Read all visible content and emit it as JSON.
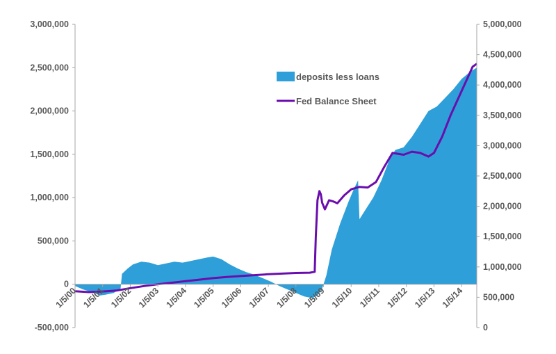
{
  "chart_data": {
    "type": "area",
    "title": "",
    "legend_position": "upper-middle",
    "grid": false,
    "x_ticks": [
      "1/5/00",
      "1/5/01",
      "1/5/02",
      "1/5/03",
      "1/5/04",
      "1/5/05",
      "1/5/06",
      "1/5/07",
      "1/5/08",
      "1/5/09",
      "1/5/10",
      "1/5/11",
      "1/5/12",
      "1/5/13",
      "1/5/14"
    ],
    "xlim": [
      2000.0,
      2014.55
    ],
    "y_left": {
      "ylim": [
        -500000,
        3000000
      ],
      "ticks": [
        "-500,000",
        "0",
        "500,000",
        "1,000,000",
        "1,500,000",
        "2,000,000",
        "2,500,000",
        "3,000,000"
      ],
      "tick_values": [
        -500000,
        0,
        500000,
        1000000,
        1500000,
        2000000,
        2500000,
        3000000
      ]
    },
    "y_right": {
      "ylim": [
        0,
        5000000
      ],
      "ticks": [
        "0",
        "500,000",
        "1,000,000",
        "1,500,000",
        "2,000,000",
        "2,500,000",
        "3,000,000",
        "3,500,000",
        "4,000,000",
        "4,500,000",
        "5,000,000"
      ],
      "tick_values": [
        0,
        500000,
        1000000,
        1500000,
        2000000,
        2500000,
        3000000,
        3500000,
        4000000,
        4500000,
        5000000
      ]
    },
    "series": [
      {
        "name": "deposits less loans",
        "type": "area",
        "axis": "left",
        "color": "#2e9fd8",
        "points": [
          [
            2000.0,
            -20000
          ],
          [
            2000.3,
            -60000
          ],
          [
            2000.6,
            -90000
          ],
          [
            2000.9,
            -130000
          ],
          [
            2001.1,
            -120000
          ],
          [
            2001.4,
            -100000
          ],
          [
            2001.65,
            -50000
          ],
          [
            2001.7,
            120000
          ],
          [
            2001.9,
            180000
          ],
          [
            2002.1,
            230000
          ],
          [
            2002.4,
            260000
          ],
          [
            2002.7,
            250000
          ],
          [
            2003.0,
            220000
          ],
          [
            2003.3,
            240000
          ],
          [
            2003.6,
            260000
          ],
          [
            2003.9,
            250000
          ],
          [
            2004.2,
            270000
          ],
          [
            2004.5,
            290000
          ],
          [
            2004.8,
            310000
          ],
          [
            2005.0,
            320000
          ],
          [
            2005.3,
            290000
          ],
          [
            2005.6,
            230000
          ],
          [
            2005.9,
            180000
          ],
          [
            2006.2,
            140000
          ],
          [
            2006.5,
            110000
          ],
          [
            2006.8,
            70000
          ],
          [
            2007.1,
            30000
          ],
          [
            2007.4,
            -20000
          ],
          [
            2007.7,
            -60000
          ],
          [
            2008.0,
            -100000
          ],
          [
            2008.3,
            -140000
          ],
          [
            2008.6,
            -160000
          ],
          [
            2008.8,
            -120000
          ],
          [
            2008.95,
            -50000
          ],
          [
            2009.1,
            100000
          ],
          [
            2009.3,
            400000
          ],
          [
            2009.6,
            700000
          ],
          [
            2009.9,
            950000
          ],
          [
            2010.1,
            1100000
          ],
          [
            2010.25,
            1200000
          ],
          [
            2010.3,
            750000
          ],
          [
            2010.5,
            850000
          ],
          [
            2010.8,
            1000000
          ],
          [
            2011.1,
            1200000
          ],
          [
            2011.4,
            1450000
          ],
          [
            2011.6,
            1550000
          ],
          [
            2011.9,
            1580000
          ],
          [
            2012.2,
            1700000
          ],
          [
            2012.5,
            1850000
          ],
          [
            2012.8,
            2000000
          ],
          [
            2013.1,
            2050000
          ],
          [
            2013.4,
            2150000
          ],
          [
            2013.7,
            2250000
          ],
          [
            2014.0,
            2370000
          ],
          [
            2014.3,
            2450000
          ],
          [
            2014.55,
            2500000
          ]
        ]
      },
      {
        "name": "Fed Balance Sheet",
        "type": "line",
        "axis": "right",
        "color": "#6a0dad",
        "points": [
          [
            2000.0,
            600000
          ],
          [
            2000.5,
            585000
          ],
          [
            2001.0,
            595000
          ],
          [
            2001.5,
            610000
          ],
          [
            2002.0,
            650000
          ],
          [
            2002.5,
            685000
          ],
          [
            2003.0,
            715000
          ],
          [
            2003.5,
            740000
          ],
          [
            2004.0,
            765000
          ],
          [
            2004.5,
            790000
          ],
          [
            2005.0,
            815000
          ],
          [
            2005.5,
            835000
          ],
          [
            2006.0,
            850000
          ],
          [
            2006.5,
            865000
          ],
          [
            2007.0,
            880000
          ],
          [
            2007.5,
            890000
          ],
          [
            2008.0,
            900000
          ],
          [
            2008.5,
            905000
          ],
          [
            2008.68,
            920000
          ],
          [
            2008.72,
            1500000
          ],
          [
            2008.78,
            2100000
          ],
          [
            2008.85,
            2250000
          ],
          [
            2008.9,
            2200000
          ],
          [
            2008.95,
            2060000
          ],
          [
            2009.05,
            1950000
          ],
          [
            2009.2,
            2100000
          ],
          [
            2009.35,
            2080000
          ],
          [
            2009.5,
            2050000
          ],
          [
            2009.75,
            2180000
          ],
          [
            2010.0,
            2280000
          ],
          [
            2010.3,
            2320000
          ],
          [
            2010.6,
            2310000
          ],
          [
            2010.9,
            2400000
          ],
          [
            2011.2,
            2650000
          ],
          [
            2011.5,
            2880000
          ],
          [
            2011.9,
            2850000
          ],
          [
            2012.2,
            2900000
          ],
          [
            2012.5,
            2880000
          ],
          [
            2012.8,
            2820000
          ],
          [
            2013.0,
            2880000
          ],
          [
            2013.3,
            3150000
          ],
          [
            2013.6,
            3500000
          ],
          [
            2013.9,
            3800000
          ],
          [
            2014.2,
            4100000
          ],
          [
            2014.4,
            4300000
          ],
          [
            2014.55,
            4350000
          ]
        ]
      }
    ]
  }
}
